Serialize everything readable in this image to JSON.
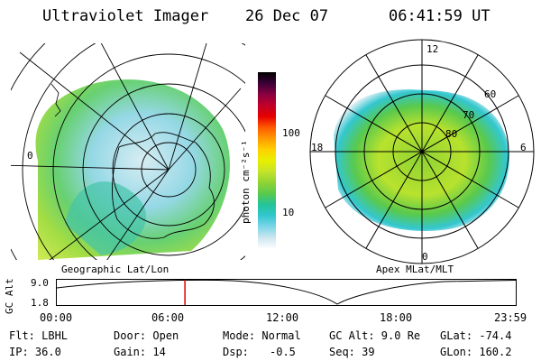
{
  "header": {
    "title": "Ultraviolet Imager",
    "date": "26 Dec 07",
    "time": "06:41:59 UT"
  },
  "geo_panel": {
    "caption": "Geographic Lat/Lon",
    "lon_label": "0"
  },
  "colorbar": {
    "unit_label": "photon cm⁻²s⁻¹",
    "tick_labels": [
      "100",
      "10"
    ],
    "colors": [
      "#ffffff",
      "#cfe7f0",
      "#7fd6e8",
      "#33c7cf",
      "#22c49b",
      "#59c94d",
      "#8fd335",
      "#c4e32a",
      "#e8f000",
      "#ffd000",
      "#ff9a00",
      "#ff5a00",
      "#e50000",
      "#c0002a",
      "#8a0040",
      "#3a0036",
      "#000000"
    ]
  },
  "polar_panel": {
    "caption": "Apex MLat/MLT",
    "mlt_labels": {
      "top": "12",
      "left": "18",
      "right": "6",
      "bottom": "0"
    },
    "lat_labels": [
      "60",
      "70",
      "80"
    ]
  },
  "alt_plot": {
    "ylabel": "GC Alt",
    "yticks": [
      "9.0",
      "1.8"
    ],
    "xticks": [
      "00:00",
      "06:00",
      "12:00",
      "18:00",
      "23:59"
    ],
    "current_time_fraction": 0.2792
  },
  "info": {
    "filter": "Flt: LBHL",
    "door": "Door: Open",
    "mode": "Mode: Normal",
    "gc_alt": "GC Alt: 9.0 Re",
    "glat": "GLat: -74.4",
    "ip": "IP: 36.0",
    "gain": "Gain: 14",
    "dsp_label": "Dsp:",
    "dsp_value": "-0.5",
    "seq": "Seq: 39",
    "glon": "GLon: 160.2"
  }
}
